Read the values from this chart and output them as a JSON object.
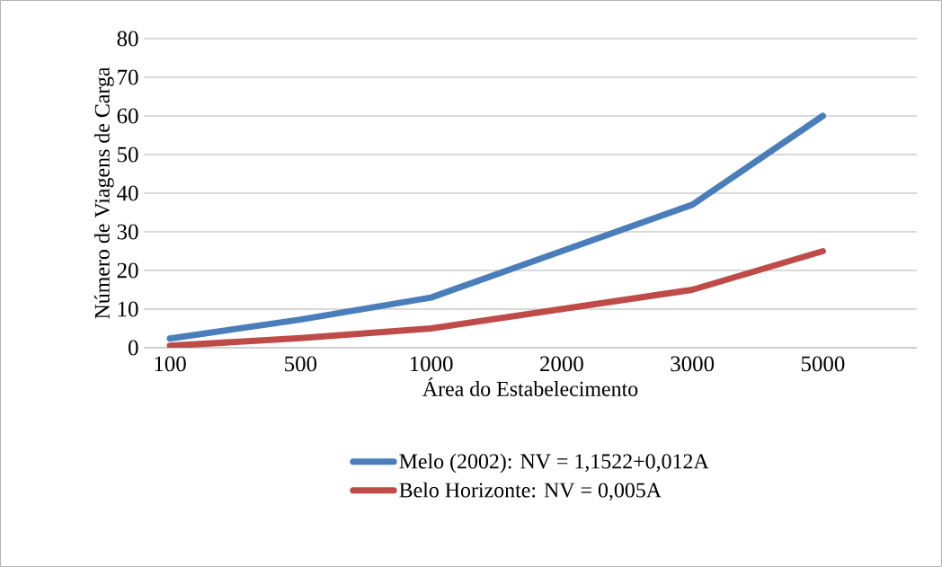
{
  "chart_data": {
    "type": "line",
    "xlabel": "Área do Estabelecimento",
    "ylabel": "Número de Viagens de Carga",
    "categories": [
      "100",
      "500",
      "1000",
      "2000",
      "3000",
      "5000"
    ],
    "series": [
      {
        "name": "Melo (2002): NV = 1,1522+0,012A",
        "color": "#4a7ebb",
        "values": [
          2.4,
          7.3,
          13,
          25,
          37,
          60
        ]
      },
      {
        "name": "Belo Horizonte: NV = 0,005A",
        "color": "#be4b48",
        "values": [
          0.5,
          2.5,
          5,
          10,
          15,
          25
        ]
      }
    ],
    "ylim": [
      0,
      80
    ],
    "yticks": [
      0,
      10,
      20,
      30,
      40,
      50,
      60,
      70,
      80
    ],
    "grid": "y",
    "legend": "bottom",
    "marker": "none",
    "line_style": "solid"
  }
}
